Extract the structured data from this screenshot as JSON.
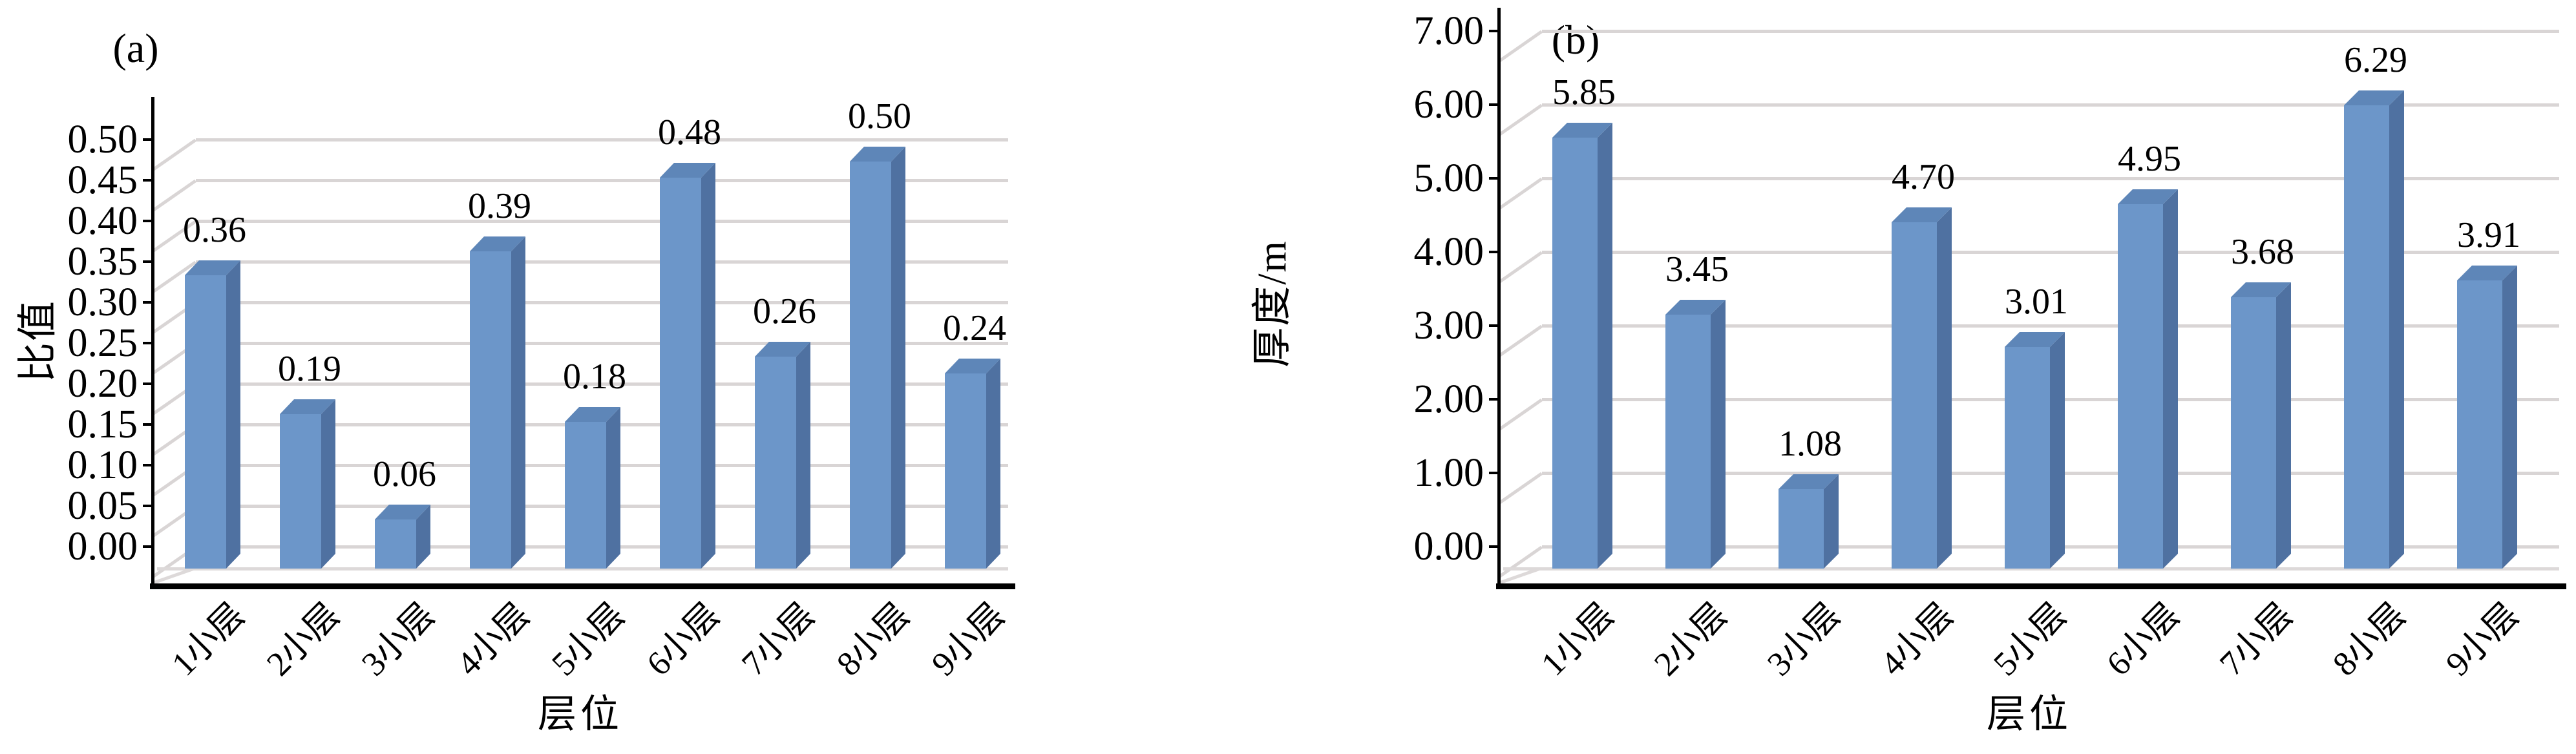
{
  "colors": {
    "background": "#ffffff",
    "axis": "#000000",
    "grid": "#d9d5d5",
    "floor": "#ddd9d9",
    "text": "#000000",
    "bar_front": "#6c96c9",
    "bar_top": "#5e86b8",
    "bar_side": "#4f71a1"
  },
  "chart_data": [
    {
      "type": "bar",
      "style": "3d-column",
      "panel_tag": "(a)",
      "title": "",
      "ylabel": "比值",
      "xlabel": "层位",
      "categories": [
        "1小层",
        "2小层",
        "3小层",
        "4小层",
        "5小层",
        "6小层",
        "7小层",
        "8小层",
        "9小层"
      ],
      "values": [
        0.36,
        0.19,
        0.06,
        0.39,
        0.18,
        0.48,
        0.26,
        0.5,
        0.24
      ],
      "data_labels": [
        "0.36",
        "0.19",
        "0.06",
        "0.39",
        "0.18",
        "0.48",
        "0.26",
        "0.50",
        "0.24"
      ],
      "yticks": [
        "0.00",
        "0.05",
        "0.10",
        "0.15",
        "0.20",
        "0.25",
        "0.30",
        "0.35",
        "0.40",
        "0.45",
        "0.50"
      ],
      "ytick_values": [
        0.0,
        0.05,
        0.1,
        0.15,
        0.2,
        0.25,
        0.3,
        0.35,
        0.4,
        0.45,
        0.5
      ],
      "ylim": [
        0,
        0.5
      ],
      "grid": true,
      "legend_position": "none"
    },
    {
      "type": "bar",
      "style": "3d-column",
      "panel_tag": "(b)",
      "title": "",
      "ylabel": "厚度/m",
      "xlabel": "层位",
      "categories": [
        "1小层",
        "2小层",
        "3小层",
        "4小层",
        "5小层",
        "6小层",
        "7小层",
        "8小层",
        "9小层"
      ],
      "values": [
        5.85,
        3.45,
        1.08,
        4.7,
        3.01,
        4.95,
        3.68,
        6.29,
        3.91
      ],
      "data_labels": [
        "5.85",
        "3.45",
        "1.08",
        "4.70",
        "3.01",
        "4.95",
        "3.68",
        "6.29",
        "3.91"
      ],
      "yticks": [
        "0.00",
        "1.00",
        "2.00",
        "3.00",
        "4.00",
        "5.00",
        "6.00",
        "7.00"
      ],
      "ytick_values": [
        0.0,
        1.0,
        2.0,
        3.0,
        4.0,
        5.0,
        6.0,
        7.0
      ],
      "ylim": [
        0,
        7.0
      ],
      "grid": true,
      "legend_position": "none"
    }
  ]
}
